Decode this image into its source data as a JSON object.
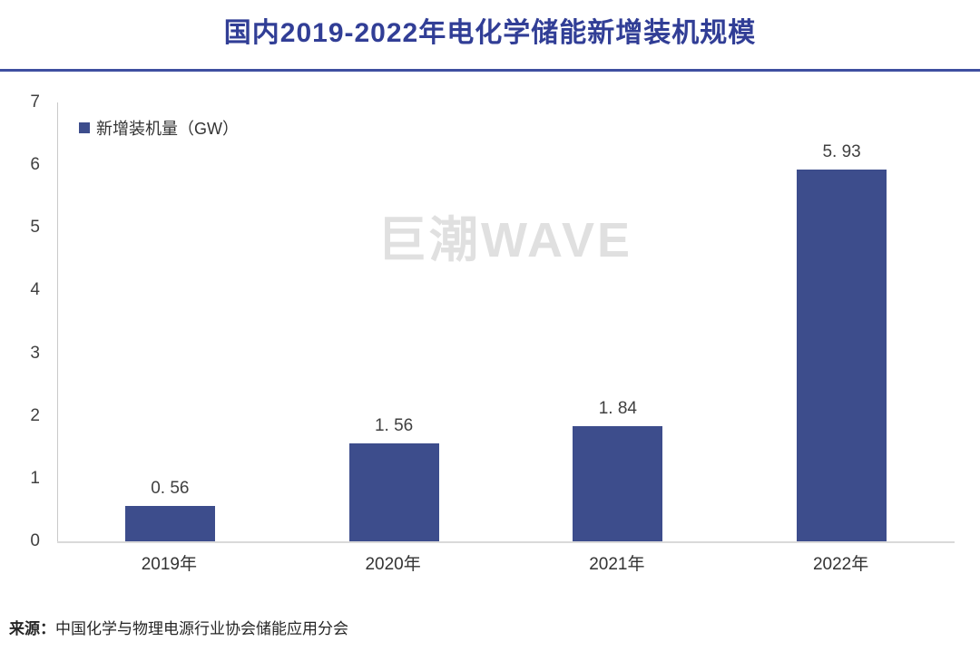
{
  "header": {
    "title": "国内2019-2022年电化学储能新增装机规模"
  },
  "legend": {
    "label": "新增装机量（GW）"
  },
  "watermark": "巨潮WAVE",
  "source": {
    "prefix": "来源：",
    "text": "中国化学与物理电源行业协会储能应用分会"
  },
  "colors": {
    "bar": "#3D4D8C",
    "title": "#313E96",
    "divider": "#3F4FA0",
    "axis_line": "#DADADA",
    "label_text": "#404040",
    "watermark": "#E0E0E0"
  },
  "chart_data": {
    "type": "bar",
    "title": "国内2019-2022年电化学储能新增装机规模",
    "series_name": "新增装机量（GW）",
    "categories": [
      "2019年",
      "2020年",
      "2021年",
      "2022年"
    ],
    "values": [
      0.56,
      1.56,
      1.84,
      5.93
    ],
    "value_labels": [
      "0. 56",
      "1. 56",
      "1. 84",
      "5. 93"
    ],
    "xlabel": "",
    "ylabel": "",
    "ylim": [
      0,
      7
    ],
    "yticks": [
      0,
      1,
      2,
      3,
      4,
      5,
      6,
      7
    ],
    "grid": false,
    "legend_position": "top-left"
  }
}
